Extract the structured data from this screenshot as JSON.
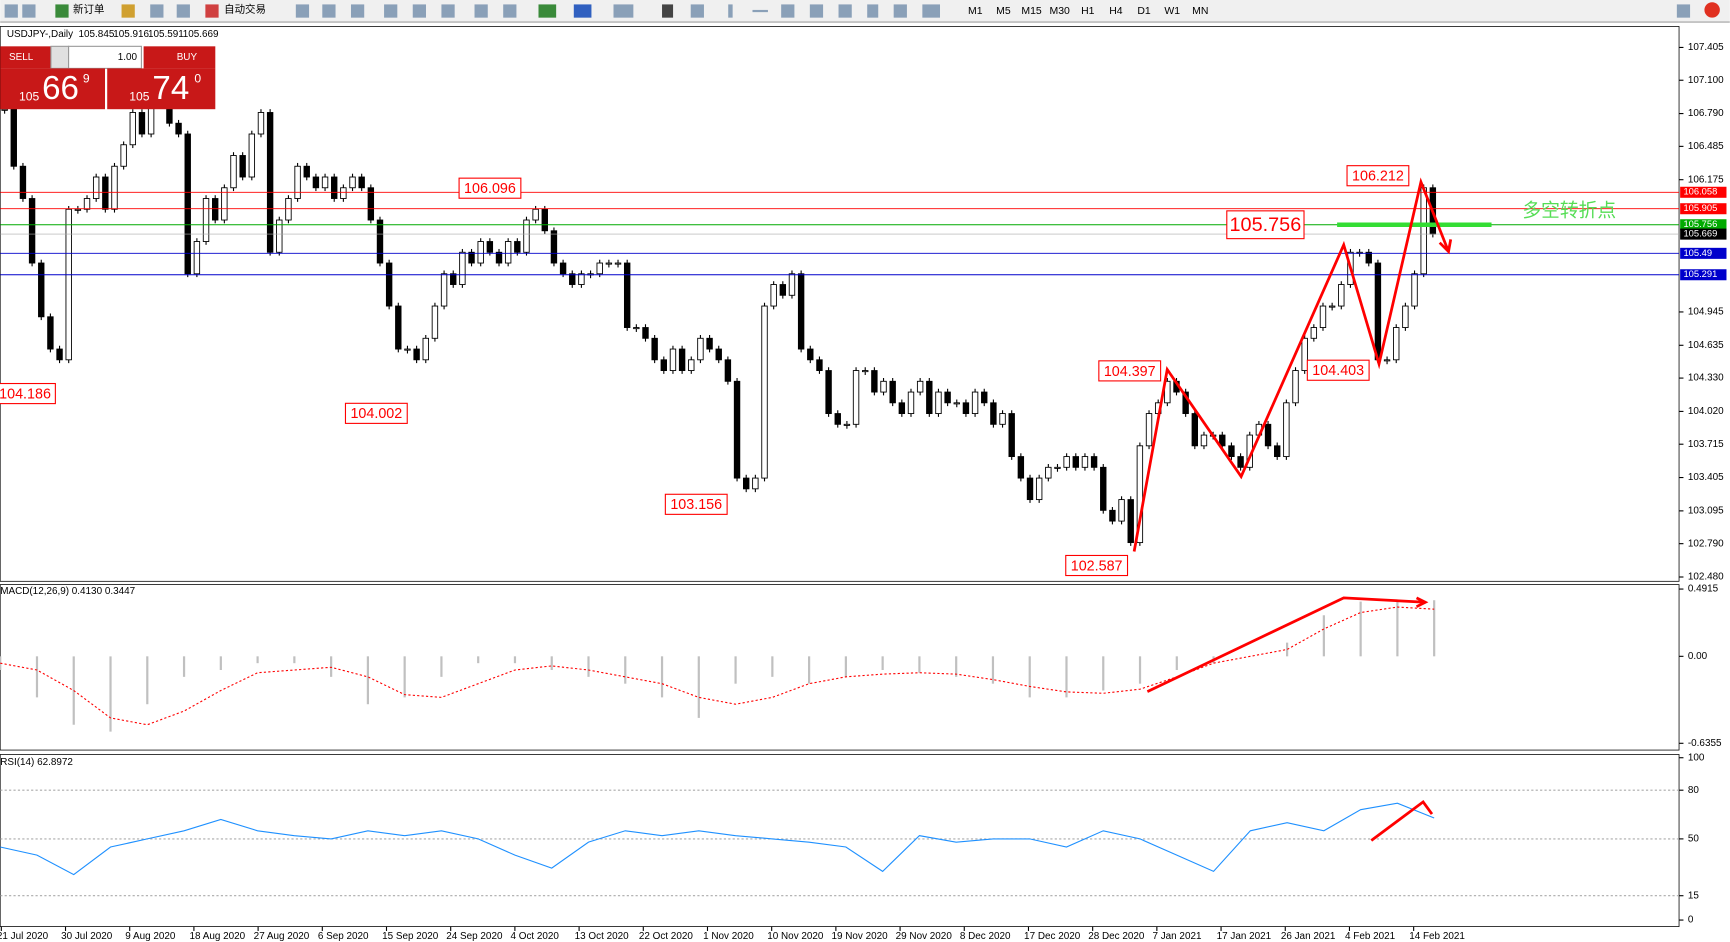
{
  "toolbar": {
    "buttons": [
      "新订单",
      "自动交易"
    ],
    "timeframes": [
      "M1",
      "M5",
      "M15",
      "M30",
      "H1",
      "H4",
      "D1",
      "W1",
      "MN"
    ]
  },
  "trade_panel": {
    "sell": "SELL",
    "buy": "BUY",
    "lots": "1.00",
    "sell_price": [
      "105",
      "66",
      "9"
    ],
    "buy_price": [
      "105",
      "74",
      "0"
    ]
  },
  "chart_data": [
    {
      "type": "candlestick",
      "title": "USDJPY-,Daily",
      "ohlc": [
        105.845,
        105.916,
        105.591,
        105.669
      ],
      "series": [
        {
          "name": "close",
          "values": [
            106.83,
            106.3,
            106.0,
            105.4,
            104.9,
            104.6,
            104.5,
            105.9,
            105.9,
            106.0,
            106.2,
            105.9,
            106.3,
            106.5,
            106.8,
            106.6,
            106.9,
            106.9,
            106.7,
            106.6,
            105.3,
            105.6,
            106.0,
            105.8,
            106.1,
            106.4,
            106.2,
            106.6,
            106.8,
            105.5,
            105.8,
            106.0,
            106.3,
            106.2,
            106.1,
            106.2,
            106.0,
            106.1,
            106.2,
            106.1,
            105.8,
            105.4,
            105.0,
            104.6,
            104.6,
            104.5,
            104.7,
            105.0,
            105.3,
            105.2,
            105.5,
            105.4,
            105.6,
            105.5,
            105.4,
            105.6,
            105.5,
            105.8,
            105.9,
            105.7,
            105.4,
            105.3,
            105.2,
            105.3,
            105.3,
            105.4,
            105.4,
            105.4,
            104.8,
            104.8,
            104.7,
            104.5,
            104.4,
            104.6,
            104.4,
            104.5,
            104.7,
            104.6,
            104.5,
            104.3,
            103.4,
            103.3,
            103.4,
            105.0,
            105.2,
            105.1,
            105.3,
            104.6,
            104.5,
            104.4,
            104.0,
            103.9,
            103.9,
            104.4,
            104.4,
            104.2,
            104.3,
            104.1,
            104.0,
            104.2,
            104.3,
            104.0,
            104.2,
            104.1,
            104.1,
            104.0,
            104.2,
            104.1,
            103.9,
            104.0,
            103.6,
            103.4,
            103.2,
            103.4,
            103.5,
            103.5,
            103.6,
            103.5,
            103.6,
            103.5,
            103.1,
            103.0,
            103.2,
            102.8,
            103.7,
            104.0,
            104.1,
            104.3,
            104.2,
            104.0,
            103.7,
            103.8,
            103.8,
            103.7,
            103.6,
            103.5,
            103.8,
            103.9,
            103.7,
            103.6,
            104.1,
            104.4,
            104.7,
            104.8,
            105.0,
            105.0,
            105.2,
            105.5,
            105.5,
            105.4,
            104.5,
            104.5,
            104.8,
            105.0,
            105.3,
            106.1,
            105.669
          ]
        }
      ],
      "ylim": [
        102.44,
        107.6
      ],
      "yticks": [
        107.405,
        {
          "value": 107.1,
          "label": "107.100"
        },
        {
          "value": 106.79,
          "label": "106.790"
        },
        106.485,
        106.175,
        104.945,
        104.635,
        {
          "value": 104.33,
          "label": "104.330"
        },
        {
          "value": 104.02,
          "label": "104.020"
        },
        103.715,
        103.405,
        103.095,
        {
          "value": 102.79,
          "label": "102.790"
        },
        {
          "value": 102.48,
          "label": "102.480"
        }
      ],
      "hlines": [
        {
          "value": 106.058,
          "color": "#ff0000"
        },
        {
          "value": 105.905,
          "color": "#ff0000"
        },
        {
          "value": 105.756,
          "color": "#00aa00"
        },
        {
          "value": 105.669,
          "color": "#000000"
        },
        {
          "value": 105.49,
          "color": "#0000cc"
        },
        {
          "value": 105.291,
          "color": "#0000cc"
        }
      ],
      "annotations": [
        106.096,
        104.186,
        104.002,
        103.156,
        102.587,
        104.397,
        104.403,
        106.212,
        105.756
      ],
      "note": "多空转折点",
      "x_labels": [
        "21 Jul 2020",
        "30 Jul 2020",
        "9 Aug 2020",
        "18 Aug 2020",
        "27 Aug 2020",
        "6 Sep 2020",
        "15 Sep 2020",
        "24 Sep 2020",
        "4 Oct 2020",
        "13 Oct 2020",
        "22 Oct 2020",
        "1 Nov 2020",
        "10 Nov 2020",
        "19 Nov 2020",
        "29 Nov 2020",
        "8 Dec 2020",
        "17 Dec 2020",
        "28 Dec 2020",
        "7 Jan 2021",
        "17 Jan 2021",
        "26 Jan 2021",
        "4 Feb 2021",
        "14 Feb 2021"
      ]
    },
    {
      "type": "macd",
      "title": "MACD(12,26,9) 0.4130 0.3447",
      "series": [
        {
          "name": "histogram",
          "color": "#c0c0c0",
          "values": [
            -0.1,
            -0.3,
            -0.5,
            -0.55,
            -0.35,
            -0.15,
            -0.1,
            -0.05,
            -0.05,
            -0.15,
            -0.35,
            -0.3,
            -0.15,
            -0.05,
            -0.05,
            -0.1,
            -0.15,
            -0.2,
            -0.3,
            -0.45,
            -0.2,
            -0.15,
            -0.2,
            -0.15,
            -0.1,
            -0.12,
            -0.15,
            -0.2,
            -0.3,
            -0.3,
            -0.25,
            -0.2,
            -0.1,
            -0.05,
            0.0,
            0.1,
            0.3,
            0.4,
            0.4,
            0.41
          ]
        },
        {
          "name": "signal",
          "color": "#ff0000",
          "values": [
            -0.05,
            -0.1,
            -0.25,
            -0.45,
            -0.5,
            -0.4,
            -0.25,
            -0.12,
            -0.1,
            -0.08,
            -0.15,
            -0.28,
            -0.3,
            -0.2,
            -0.1,
            -0.07,
            -0.1,
            -0.15,
            -0.2,
            -0.3,
            -0.35,
            -0.3,
            -0.2,
            -0.15,
            -0.13,
            -0.12,
            -0.13,
            -0.17,
            -0.22,
            -0.26,
            -0.27,
            -0.24,
            -0.15,
            -0.05,
            0.0,
            0.05,
            0.2,
            0.32,
            0.36,
            0.3447
          ]
        }
      ],
      "ylim": [
        -0.685,
        0.524
      ],
      "yticks": [
        0.4915,
        {
          "value": 0,
          "label": "0.00"
        },
        -0.6355
      ]
    },
    {
      "type": "rsi",
      "title": "RSI(14) 62.8972",
      "series": [
        {
          "name": "RSI",
          "color": "#1e90ff",
          "values": [
            45,
            40,
            28,
            45,
            50,
            55,
            62,
            55,
            52,
            50,
            55,
            52,
            55,
            50,
            40,
            32,
            48,
            55,
            52,
            55,
            52,
            50,
            48,
            45,
            30,
            52,
            48,
            50,
            50,
            45,
            55,
            50,
            40,
            30,
            55,
            60,
            55,
            68,
            72,
            62.8972
          ]
        }
      ],
      "ylim": [
        -4,
        102
      ],
      "yticks": [
        100,
        80,
        50,
        15,
        0
      ],
      "levels": [
        80,
        50,
        15
      ]
    }
  ]
}
